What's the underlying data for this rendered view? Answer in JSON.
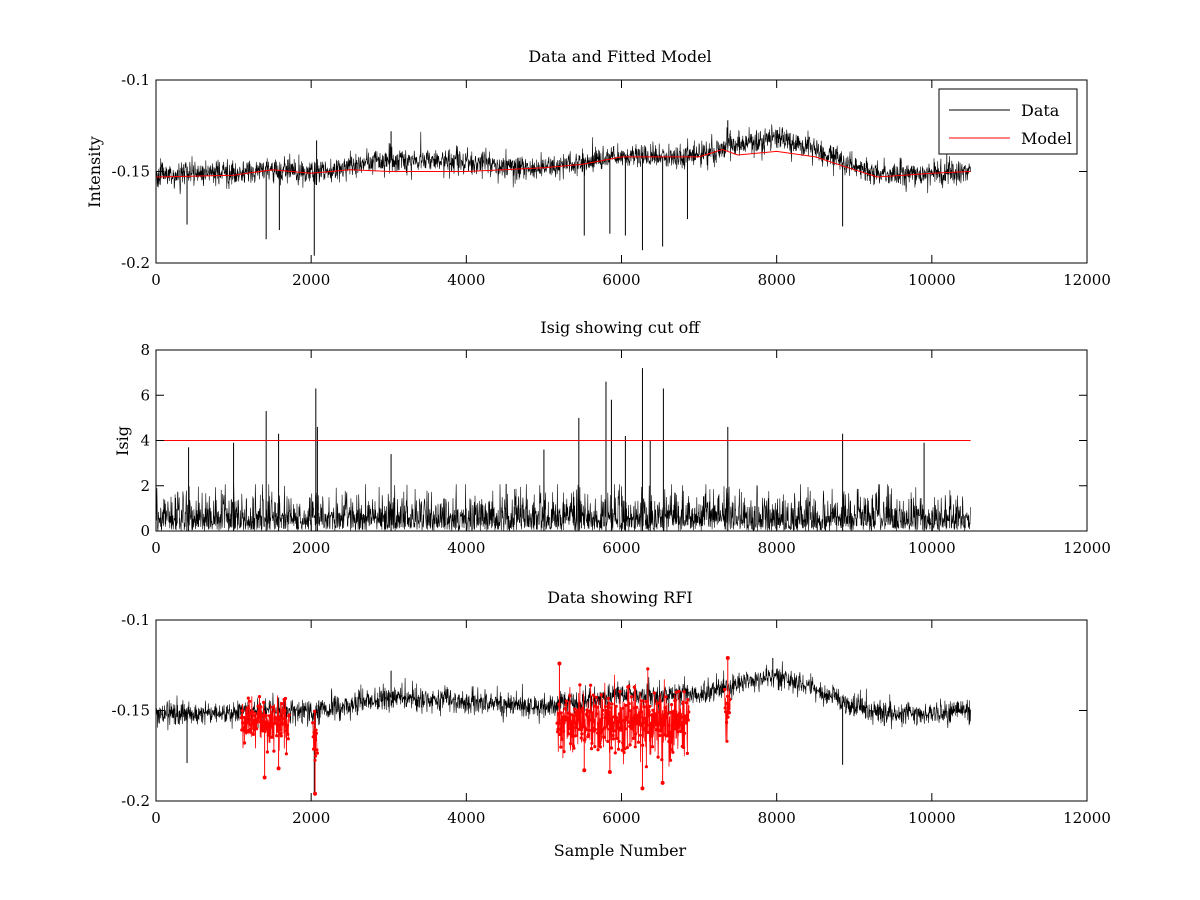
{
  "chart_data": [
    {
      "id": "top",
      "type": "line",
      "title": "Data and Fitted Model",
      "xlabel": "",
      "ylabel": "Intensity",
      "xlim": [
        0,
        12000
      ],
      "ylim": [
        -0.2,
        -0.1
      ],
      "xticks": [
        0,
        2000,
        4000,
        6000,
        8000,
        10000,
        12000
      ],
      "yticks": [
        -0.2,
        -0.15,
        -0.1
      ],
      "xtick_labels": [
        "0",
        "2000",
        "4000",
        "6000",
        "8000",
        "10000",
        "12000"
      ],
      "ytick_labels": [
        "-0.2",
        "-0.15",
        "-0.1"
      ],
      "legend": {
        "position": "top-right",
        "entries": [
          "Data",
          "Model"
        ]
      },
      "series": [
        {
          "name": "Data",
          "color": "#000000",
          "x_range": [
            0,
            10500
          ],
          "baseline": {
            "x": [
              0,
              1000,
              1500,
              2000,
              2500,
              3000,
              4000,
              5000,
              5500,
              6000,
              6500,
              7000,
              7500,
              8000,
              8500,
              9000,
              9500,
              10000,
              10500
            ],
            "y": [
              -0.152,
              -0.151,
              -0.149,
              -0.151,
              -0.147,
              -0.143,
              -0.145,
              -0.148,
              -0.145,
              -0.141,
              -0.142,
              -0.141,
              -0.135,
              -0.131,
              -0.138,
              -0.148,
              -0.152,
              -0.151,
              -0.15
            ]
          },
          "noise_amplitude": 0.006,
          "spikes": [
            {
              "x": 400,
              "y": -0.179
            },
            {
              "x": 1420,
              "y": -0.187
            },
            {
              "x": 1590,
              "y": -0.182
            },
            {
              "x": 2040,
              "y": -0.196
            },
            {
              "x": 2070,
              "y": -0.133
            },
            {
              "x": 3030,
              "y": -0.128
            },
            {
              "x": 5520,
              "y": -0.185
            },
            {
              "x": 5850,
              "y": -0.184
            },
            {
              "x": 6050,
              "y": -0.185
            },
            {
              "x": 6270,
              "y": -0.193
            },
            {
              "x": 6530,
              "y": -0.191
            },
            {
              "x": 6850,
              "y": -0.176
            },
            {
              "x": 7370,
              "y": -0.122
            },
            {
              "x": 8850,
              "y": -0.18
            }
          ]
        },
        {
          "name": "Model",
          "color": "#ff0000",
          "x": [
            0,
            1000,
            1500,
            2000,
            2500,
            3000,
            4000,
            5000,
            5500,
            6000,
            6500,
            7000,
            7300,
            7500,
            8000,
            8500,
            9000,
            9300,
            10000,
            10500
          ],
          "y": [
            -0.153,
            -0.152,
            -0.149,
            -0.151,
            -0.149,
            -0.15,
            -0.15,
            -0.148,
            -0.146,
            -0.142,
            -0.142,
            -0.142,
            -0.138,
            -0.141,
            -0.139,
            -0.142,
            -0.149,
            -0.153,
            -0.151,
            -0.15
          ]
        }
      ]
    },
    {
      "id": "middle",
      "type": "line",
      "title": "Isig showing cut off",
      "xlabel": "",
      "ylabel": "Isig",
      "xlim": [
        0,
        12000
      ],
      "ylim": [
        0,
        8
      ],
      "xticks": [
        0,
        2000,
        4000,
        6000,
        8000,
        10000,
        12000
      ],
      "yticks": [
        0,
        2,
        4,
        6,
        8
      ],
      "xtick_labels": [
        "0",
        "2000",
        "4000",
        "6000",
        "8000",
        "10000",
        "12000"
      ],
      "ytick_labels": [
        "0",
        "2",
        "4",
        "6",
        "8"
      ],
      "series": [
        {
          "name": "Isig",
          "color": "#000000",
          "x_range": [
            0,
            10500
          ],
          "typical_max": 1.8,
          "spikes": [
            {
              "x": 420,
              "y": 3.7
            },
            {
              "x": 1000,
              "y": 3.9
            },
            {
              "x": 1420,
              "y": 5.3
            },
            {
              "x": 1580,
              "y": 4.3
            },
            {
              "x": 2060,
              "y": 6.3
            },
            {
              "x": 2080,
              "y": 4.6
            },
            {
              "x": 3030,
              "y": 3.4
            },
            {
              "x": 5000,
              "y": 3.6
            },
            {
              "x": 5450,
              "y": 5.0
            },
            {
              "x": 5800,
              "y": 6.6
            },
            {
              "x": 5870,
              "y": 5.8
            },
            {
              "x": 6050,
              "y": 4.2
            },
            {
              "x": 6270,
              "y": 7.2
            },
            {
              "x": 6370,
              "y": 4.0
            },
            {
              "x": 6540,
              "y": 6.3
            },
            {
              "x": 7370,
              "y": 4.6
            },
            {
              "x": 8850,
              "y": 4.3
            },
            {
              "x": 9900,
              "y": 3.9
            }
          ]
        },
        {
          "name": "Cut off",
          "color": "#ff0000",
          "x": [
            0,
            10500
          ],
          "y": [
            4,
            4
          ]
        }
      ]
    },
    {
      "id": "bottom",
      "type": "line",
      "title": "Data showing RFI",
      "xlabel": "Sample Number",
      "ylabel": "",
      "xlim": [
        0,
        12000
      ],
      "ylim": [
        -0.2,
        -0.1
      ],
      "xticks": [
        0,
        2000,
        4000,
        6000,
        8000,
        10000,
        12000
      ],
      "yticks": [
        -0.2,
        -0.15,
        -0.1
      ],
      "xtick_labels": [
        "0",
        "2000",
        "4000",
        "6000",
        "8000",
        "10000",
        "12000"
      ],
      "ytick_labels": [
        "-0.2",
        "-0.15",
        "-0.1"
      ],
      "series": [
        {
          "name": "Data",
          "color": "#000000",
          "x_range": [
            0,
            10500
          ],
          "baseline": {
            "x": [
              0,
              1000,
              1500,
              2000,
              2500,
              3000,
              4000,
              5000,
              5500,
              6000,
              6500,
              7000,
              7500,
              8000,
              8500,
              9000,
              9500,
              10000,
              10500
            ],
            "y": [
              -0.152,
              -0.151,
              -0.149,
              -0.151,
              -0.147,
              -0.143,
              -0.145,
              -0.148,
              -0.145,
              -0.141,
              -0.142,
              -0.141,
              -0.135,
              -0.131,
              -0.138,
              -0.148,
              -0.152,
              -0.151,
              -0.15
            ]
          },
          "noise_amplitude": 0.006,
          "spikes": [
            {
              "x": 400,
              "y": -0.179
            },
            {
              "x": 2040,
              "y": -0.196
            },
            {
              "x": 3030,
              "y": -0.128
            },
            {
              "x": 7950,
              "y": -0.121
            },
            {
              "x": 8850,
              "y": -0.18
            }
          ]
        },
        {
          "name": "RFI",
          "color": "#ff0000",
          "marker": "dot",
          "segments": [
            {
              "x_range": [
                1100,
                1720
              ],
              "y_range": [
                -0.178,
                -0.135
              ]
            },
            {
              "x_range": [
                2020,
                2080
              ],
              "y_range": [
                -0.196,
                -0.134
              ]
            },
            {
              "x_range": [
                5170,
                6870
              ],
              "y_range": [
                -0.186,
                -0.127
              ]
            },
            {
              "x_range": [
                7330,
                7400
              ],
              "y_range": [
                -0.175,
                -0.122
              ]
            }
          ],
          "outliers": [
            {
              "x": 1400,
              "y": -0.187
            },
            {
              "x": 1580,
              "y": -0.182
            },
            {
              "x": 2050,
              "y": -0.196
            },
            {
              "x": 5200,
              "y": -0.124
            },
            {
              "x": 5520,
              "y": -0.183
            },
            {
              "x": 5850,
              "y": -0.184
            },
            {
              "x": 6270,
              "y": -0.193
            },
            {
              "x": 6530,
              "y": -0.19
            },
            {
              "x": 7370,
              "y": -0.121
            }
          ]
        }
      ]
    }
  ]
}
